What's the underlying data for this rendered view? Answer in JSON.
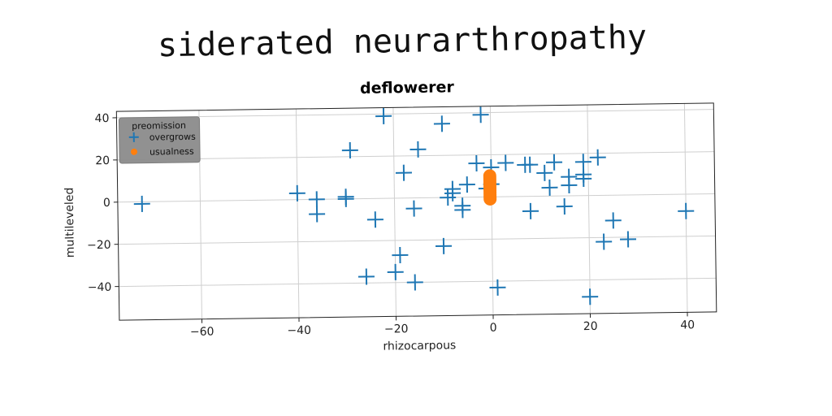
{
  "page_title": "siderated neurarthropathy",
  "chart_data": {
    "type": "scatter",
    "title": "deflowerer",
    "xlabel": "rhizocarpous",
    "ylabel": "multileveled",
    "xlim": [
      -77,
      46
    ],
    "ylim": [
      -56,
      43
    ],
    "xticks": [
      -60,
      -40,
      -20,
      0,
      20,
      40
    ],
    "yticks": [
      -40,
      -20,
      0,
      20,
      40
    ],
    "xtick_labels": [
      "−60",
      "−40",
      "−20",
      "0",
      "20",
      "40"
    ],
    "ytick_labels": [
      "−40",
      "−20",
      "0",
      "20",
      "40"
    ],
    "grid": true,
    "legend": {
      "title": "preomission",
      "position": "top-left"
    },
    "series": [
      {
        "name": "overgrows",
        "marker": "plus",
        "color": "#1f77b4",
        "points": [
          [
            -72,
            -1
          ],
          [
            -40,
            3
          ],
          [
            -36,
            0
          ],
          [
            -36,
            -7
          ],
          [
            -30,
            1
          ],
          [
            -30,
            0
          ],
          [
            -29,
            23
          ],
          [
            -24,
            -10
          ],
          [
            -26,
            -37
          ],
          [
            -22,
            39
          ],
          [
            -20,
            -35
          ],
          [
            -19,
            -27
          ],
          [
            -18,
            12
          ],
          [
            -16,
            -40
          ],
          [
            -16,
            -5
          ],
          [
            -15,
            23
          ],
          [
            -10,
            -23
          ],
          [
            -10,
            35
          ],
          [
            -9,
            0
          ],
          [
            -8,
            4
          ],
          [
            -8,
            2
          ],
          [
            -6,
            -6
          ],
          [
            -6,
            -4
          ],
          [
            -5,
            6
          ],
          [
            -3,
            16
          ],
          [
            -2,
            39
          ],
          [
            -1,
            4
          ],
          [
            0,
            14
          ],
          [
            0,
            6
          ],
          [
            1,
            -43
          ],
          [
            3,
            16
          ],
          [
            7,
            15
          ],
          [
            8,
            15
          ],
          [
            8,
            -7
          ],
          [
            11,
            11
          ],
          [
            12,
            4
          ],
          [
            13,
            16
          ],
          [
            15,
            -5
          ],
          [
            16,
            9
          ],
          [
            16,
            5
          ],
          [
            19,
            16
          ],
          [
            19,
            10
          ],
          [
            19,
            8
          ],
          [
            20,
            -48
          ],
          [
            22,
            18
          ],
          [
            23,
            -22
          ],
          [
            25,
            -12
          ],
          [
            28,
            -21
          ],
          [
            40,
            -8
          ]
        ]
      },
      {
        "name": "usualness",
        "marker": "circle",
        "color": "#ff7f0e",
        "points": [
          [
            -0.3,
            10
          ],
          [
            -0.3,
            9
          ],
          [
            -0.3,
            8
          ],
          [
            -0.3,
            7
          ],
          [
            -0.3,
            6
          ],
          [
            -0.3,
            5
          ],
          [
            -0.3,
            4
          ],
          [
            -0.3,
            3
          ],
          [
            -0.3,
            2
          ],
          [
            -0.3,
            1
          ],
          [
            -0.3,
            0
          ],
          [
            -0.3,
            -1
          ]
        ]
      }
    ]
  }
}
